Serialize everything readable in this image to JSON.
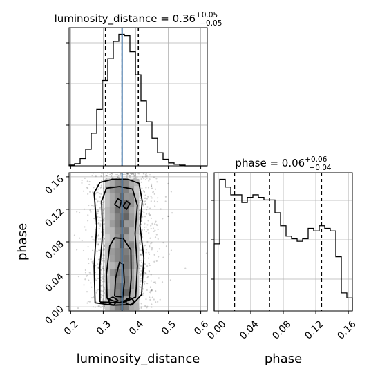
{
  "chart_data": {
    "type": "corner",
    "parameters": [
      "luminosity_distance",
      "phase"
    ],
    "title_mass": {
      "name": "luminosity_distance",
      "median": "0.36",
      "plus": "+0.05",
      "minus": "−0.05"
    },
    "title_phase": {
      "name": "phase",
      "median": "0.06",
      "plus": "+0.06",
      "minus": "−0.04"
    },
    "xlabel_left": "luminosity_distance",
    "xlabel_right": "phase",
    "ylabel_scatter": "phase",
    "d_range": [
      0.195,
      0.62
    ],
    "p_range": [
      -0.005,
      0.165
    ],
    "d_ticks": [
      "0.2",
      "0.3",
      "0.4",
      "0.5",
      "0.6"
    ],
    "p_ticks": [
      "0.00",
      "0.04",
      "0.08",
      "0.12",
      "0.16"
    ],
    "truth_value": 0.358,
    "truth_color": "#4477aa",
    "quantiles_d": [
      0.307,
      0.358,
      0.408
    ],
    "quantiles_p": [
      0.02,
      0.063,
      0.127
    ],
    "hist_d": {
      "edges": [
        0.195,
        0.212,
        0.229,
        0.246,
        0.263,
        0.28,
        0.297,
        0.314,
        0.331,
        0.348,
        0.365,
        0.382,
        0.399,
        0.416,
        0.433,
        0.45,
        0.467,
        0.484,
        0.501,
        0.518,
        0.535,
        0.552,
        0.569,
        0.586,
        0.603,
        0.62
      ],
      "counts": [
        1,
        3,
        10,
        23,
        45,
        78,
        118,
        148,
        172,
        182,
        180,
        158,
        126,
        90,
        61,
        38,
        18,
        9,
        4,
        2,
        1,
        0,
        0,
        0,
        0
      ]
    },
    "hist_p": {
      "edges": [
        -0.005,
        0.0018,
        0.0086,
        0.0154,
        0.0222,
        0.029,
        0.0358,
        0.0426,
        0.0494,
        0.0562,
        0.063,
        0.0698,
        0.0766,
        0.0834,
        0.0902,
        0.097,
        0.1038,
        0.1106,
        0.1174,
        0.1242,
        0.131,
        0.1378,
        0.1446,
        0.1514,
        0.1582,
        0.165
      ],
      "counts": [
        52,
        102,
        96,
        90,
        90,
        84,
        88,
        90,
        88,
        86,
        86,
        76,
        66,
        58,
        56,
        54,
        56,
        64,
        62,
        66,
        64,
        62,
        42,
        14,
        10
      ]
    },
    "contour_levels": [
      "1σ",
      "1.5σ",
      "2σ"
    ],
    "contour_color": "#000000",
    "hist_color": "#000000",
    "grid": true
  }
}
